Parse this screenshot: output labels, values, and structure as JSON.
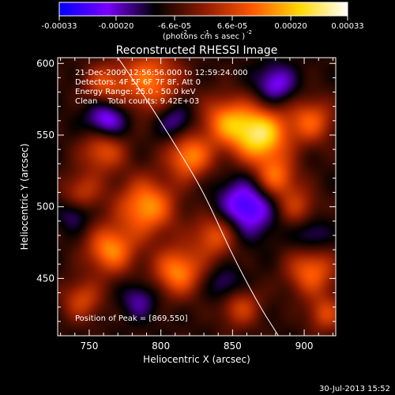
{
  "colorbar": {
    "tick_labels": [
      "-0.00033",
      "-0.00020",
      "-6.6e-05",
      "6.6e-05",
      "0.00020",
      "0.00033"
    ],
    "tick_values": [
      -0.00033,
      -0.0002,
      -6.6e-05,
      6.6e-05,
      0.0002,
      0.00033
    ],
    "range": [
      -0.00033,
      0.00033
    ],
    "unit_text": "(photons cm  s  asec  )",
    "unit_exponents": [
      "-2",
      "-1",
      "-2"
    ],
    "colors": [
      "#0000ff",
      "#7a00ff",
      "#000000",
      "#8b1a00",
      "#ff5500",
      "#ffd800",
      "#ffffff"
    ]
  },
  "chart_data": {
    "type": "heatmap",
    "title": "Reconstructed RHESSI Image",
    "xlabel": "Heliocentric X (arcsec)",
    "ylabel": "Heliocentric Y (arcsec)",
    "xlim": [
      728,
      922
    ],
    "ylim": [
      410,
      604
    ],
    "x_ticks": [
      750,
      800,
      850,
      900
    ],
    "y_ticks": [
      450,
      500,
      550,
      600
    ],
    "annotations": [
      "21-Dec-2009 12:56:56.000 to 12:59:24.000",
      "Detectors: 4F 5F 6F 7F 8F, Att 0",
      "Energy Range: 25.0 - 50.0 keV",
      "Clean    Total counts: 9.42E+03"
    ],
    "peak_label": "Position of Peak = [869,550]",
    "peak": [
      869,
      550
    ],
    "limb_curve": [
      [
        770,
        604
      ],
      [
        790,
        575
      ],
      [
        812,
        540
      ],
      [
        830,
        510
      ],
      [
        848,
        470
      ],
      [
        868,
        432
      ],
      [
        882,
        410
      ]
    ],
    "sources": [
      {
        "x": 869,
        "y": 550,
        "amp": 1.0,
        "sigma": 14
      },
      {
        "x": 845,
        "y": 560,
        "amp": 0.6,
        "sigma": 12
      },
      {
        "x": 792,
        "y": 588,
        "amp": 0.65,
        "sigma": 15
      },
      {
        "x": 760,
        "y": 585,
        "amp": 0.45,
        "sigma": 10
      },
      {
        "x": 760,
        "y": 540,
        "amp": 0.55,
        "sigma": 11
      },
      {
        "x": 820,
        "y": 535,
        "amp": 0.7,
        "sigma": 11
      },
      {
        "x": 880,
        "y": 520,
        "amp": 0.6,
        "sigma": 10
      },
      {
        "x": 905,
        "y": 560,
        "amp": 0.55,
        "sigma": 11
      },
      {
        "x": 745,
        "y": 510,
        "amp": 0.4,
        "sigma": 10
      },
      {
        "x": 790,
        "y": 500,
        "amp": 0.75,
        "sigma": 14
      },
      {
        "x": 765,
        "y": 470,
        "amp": 0.7,
        "sigma": 12
      },
      {
        "x": 838,
        "y": 480,
        "amp": 0.55,
        "sigma": 11
      },
      {
        "x": 812,
        "y": 455,
        "amp": 0.7,
        "sigma": 12
      },
      {
        "x": 855,
        "y": 430,
        "amp": 0.45,
        "sigma": 10
      },
      {
        "x": 905,
        "y": 455,
        "amp": 0.6,
        "sigma": 12
      },
      {
        "x": 895,
        "y": 500,
        "amp": 0.4,
        "sigma": 10
      },
      {
        "x": 745,
        "y": 435,
        "amp": 0.45,
        "sigma": 10
      },
      {
        "x": 915,
        "y": 425,
        "amp": 0.45,
        "sigma": 9
      },
      {
        "x": 762,
        "y": 560,
        "amp": -0.55,
        "sigma": 10
      },
      {
        "x": 810,
        "y": 560,
        "amp": -0.35,
        "sigma": 9
      },
      {
        "x": 860,
        "y": 500,
        "amp": -0.6,
        "sigma": 14
      },
      {
        "x": 880,
        "y": 585,
        "amp": -0.45,
        "sigma": 10
      },
      {
        "x": 905,
        "y": 480,
        "amp": -0.3,
        "sigma": 9
      },
      {
        "x": 740,
        "y": 495,
        "amp": -0.3,
        "sigma": 8
      },
      {
        "x": 845,
        "y": 445,
        "amp": -0.3,
        "sigma": 9
      },
      {
        "x": 785,
        "y": 435,
        "amp": -0.3,
        "sigma": 9
      }
    ]
  },
  "footer": {
    "date": "30-Jul-2013 15:52"
  }
}
